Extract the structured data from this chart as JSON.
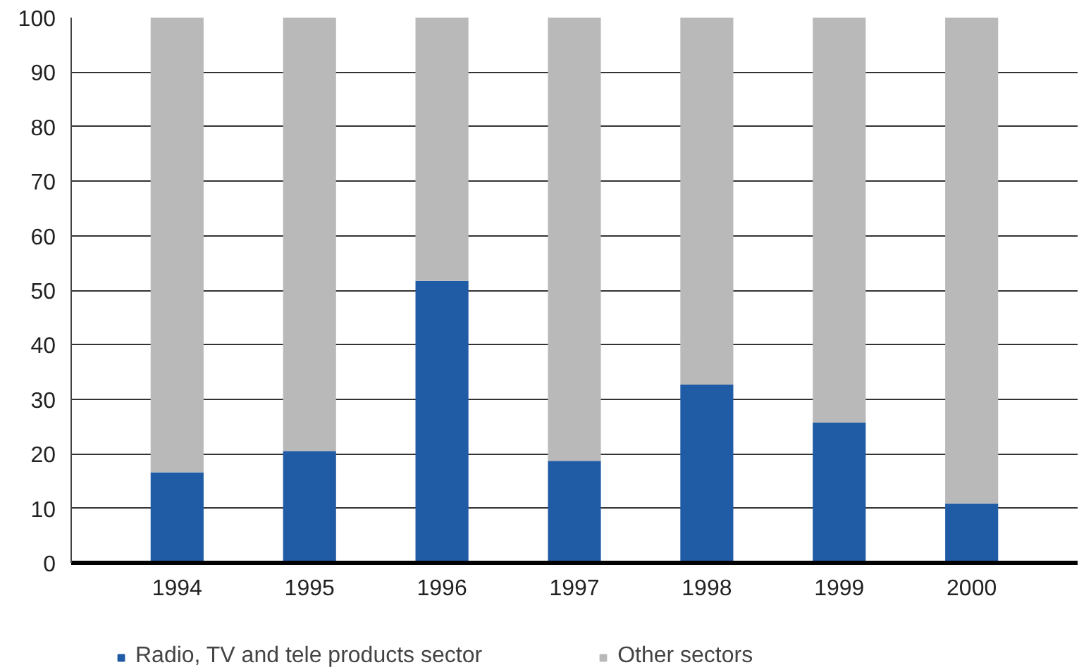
{
  "chart_data": {
    "type": "bar",
    "stacked": true,
    "categories": [
      "1994",
      "1995",
      "1996",
      "1997",
      "1998",
      "1999",
      "2000"
    ],
    "series": [
      {
        "name": "Radio, TV and tele products sector",
        "color": "#205ba6",
        "values": [
          16.6,
          20.5,
          51.7,
          18.7,
          32.7,
          25.7,
          10.9
        ]
      },
      {
        "name": "Other sectors",
        "color": "#b9b9b9",
        "values": [
          83.4,
          79.5,
          48.3,
          81.3,
          67.3,
          74.3,
          89.1
        ]
      }
    ],
    "ylim": [
      0,
      100
    ],
    "yticks": [
      0,
      10,
      20,
      30,
      40,
      50,
      60,
      70,
      80,
      90,
      100
    ],
    "grid": "y",
    "legend": "bottom"
  }
}
